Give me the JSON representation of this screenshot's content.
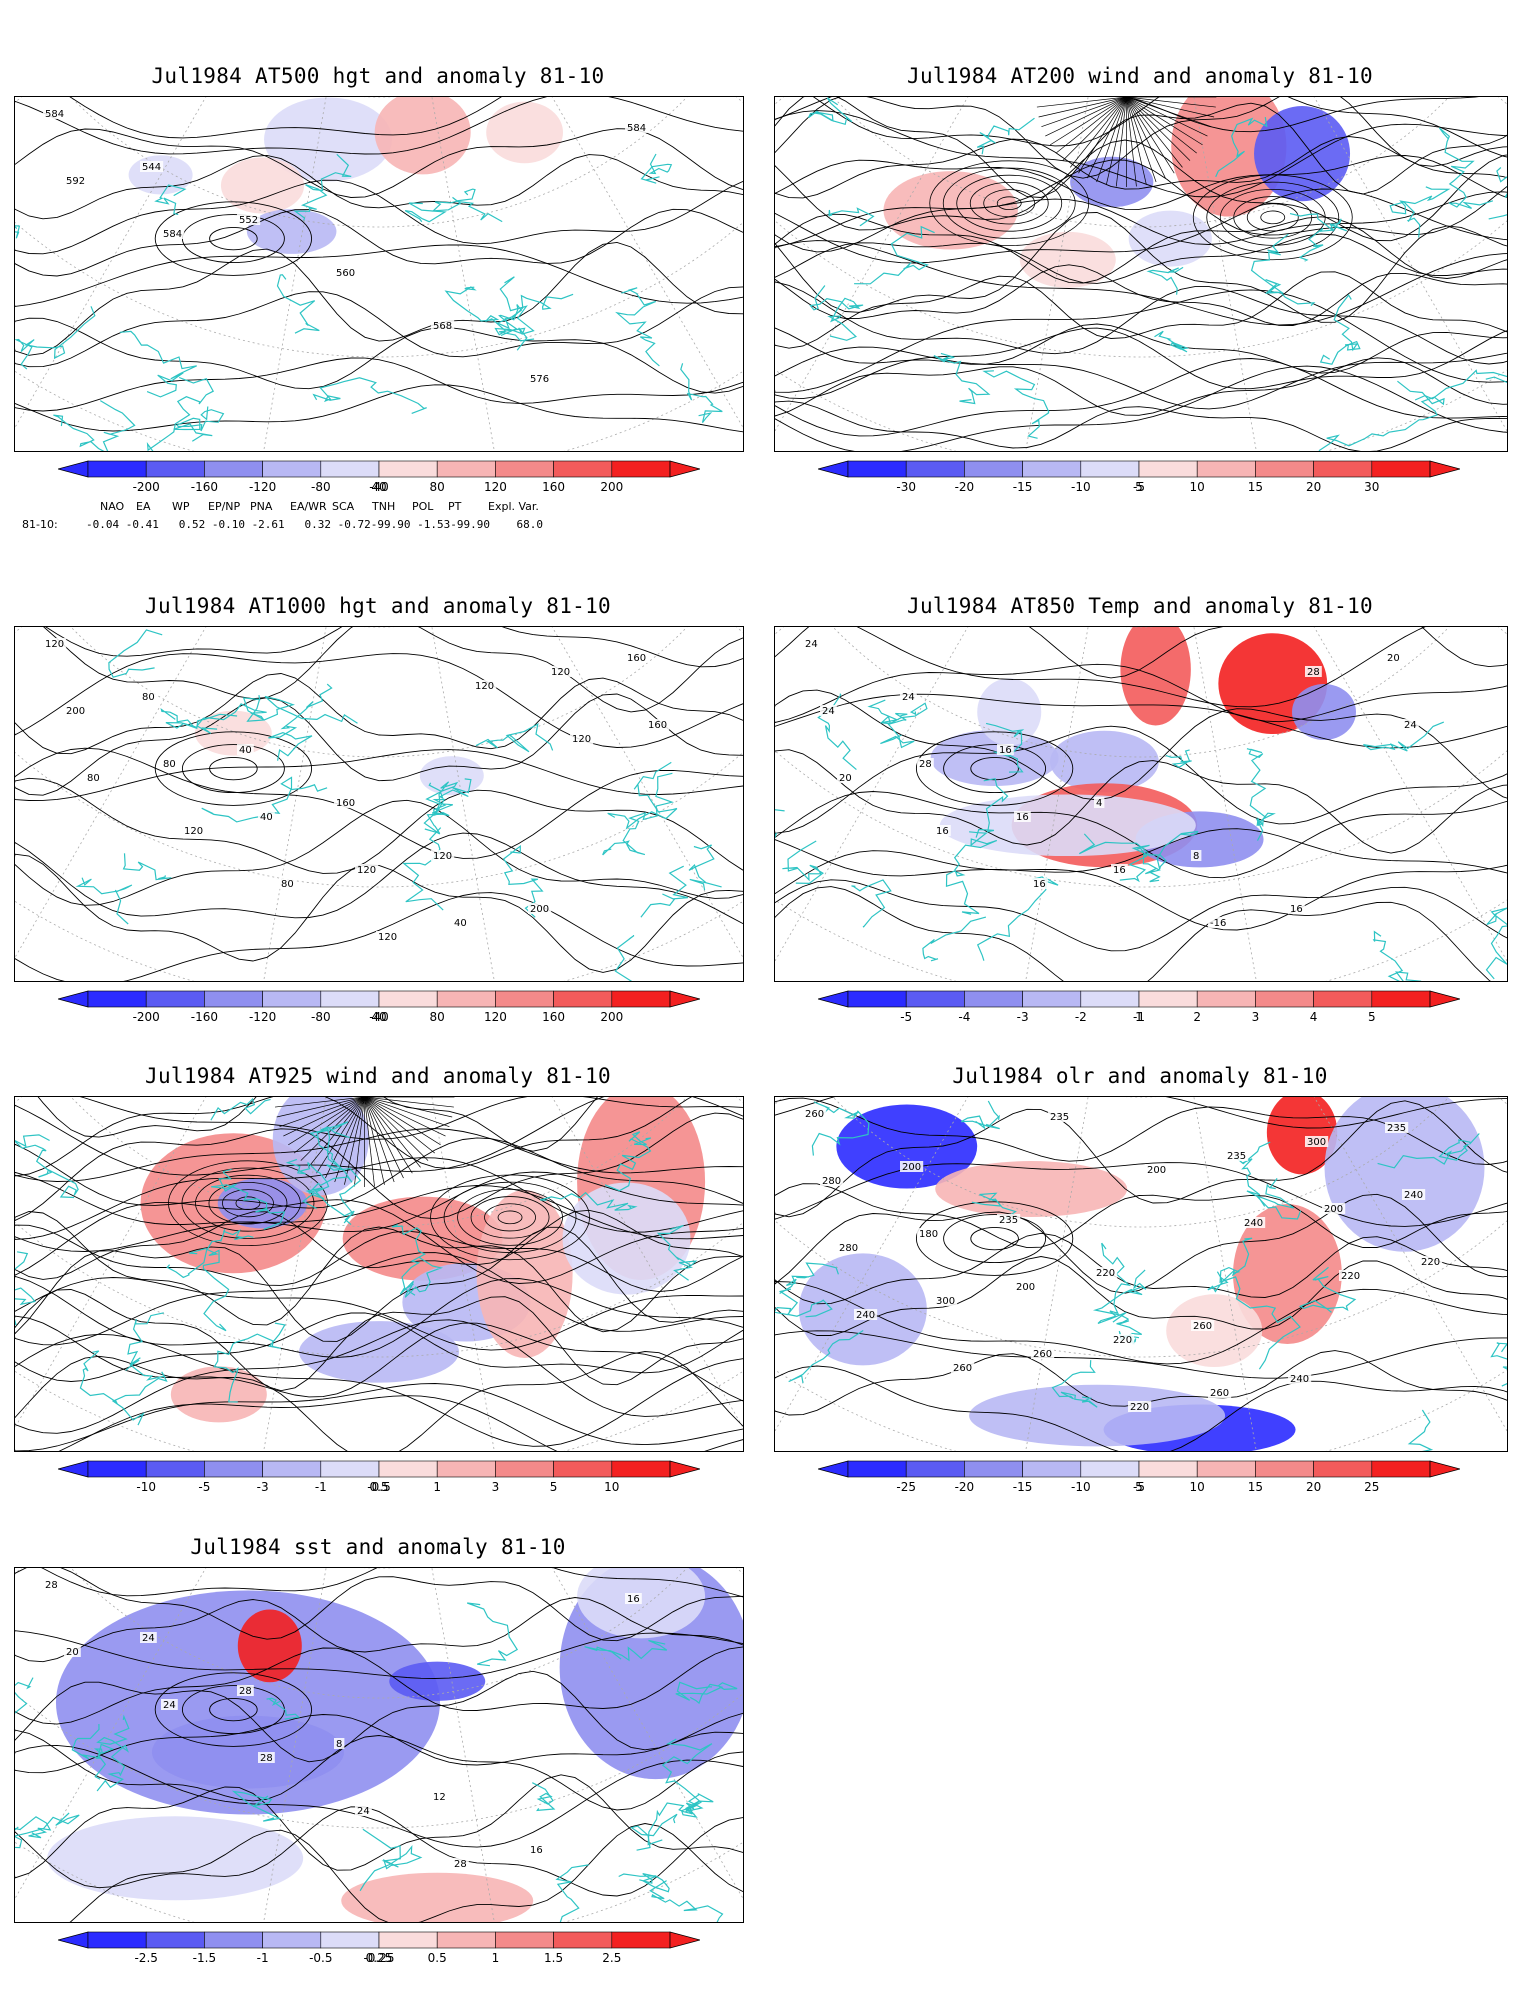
{
  "colors": {
    "coast": "#2ec4c4",
    "contour": "#000000",
    "grid": "#aaaaaa",
    "neg_ramp": [
      "#2b2bff",
      "#5b5bf3",
      "#8f8ff0",
      "#b8b8f4",
      "#dcdcf8"
    ],
    "pos_ramp": [
      "#fadcdc",
      "#f7b5b5",
      "#f48a8a",
      "#f35b5b",
      "#f32020"
    ]
  },
  "panels": [
    {
      "id": "at500",
      "title": "Jul1984 AT500 hgt and anomaly 81-10",
      "colorbar": [
        "-200",
        "-160",
        "-120",
        "-80",
        "-40",
        "40",
        "80",
        "120",
        "160",
        "200"
      ],
      "contour_labels": [
        "584",
        "544",
        "552",
        "560",
        "568",
        "576",
        "584",
        "592",
        "584"
      ]
    },
    {
      "id": "at200",
      "title": "Jul1984 AT200 wind and anomaly 81-10",
      "colorbar": [
        "-30",
        "-20",
        "-15",
        "-10",
        "-5",
        "5",
        "10",
        "15",
        "20",
        "30"
      ],
      "contour_labels": []
    },
    {
      "id": "at1000",
      "title": "Jul1984 AT1000 hgt and anomaly 81-10",
      "colorbar": [
        "-200",
        "-160",
        "-120",
        "-80",
        "-40",
        "40",
        "80",
        "120",
        "160",
        "200"
      ],
      "contour_labels": [
        "120",
        "80",
        "40",
        "160",
        "120",
        "200",
        "160",
        "200",
        "80",
        "40",
        "120",
        "40",
        "120",
        "160",
        "80",
        "120",
        "80",
        "120",
        "120",
        "120"
      ]
    },
    {
      "id": "at850",
      "title": "Jul1984 AT850 Temp and anomaly 81-10",
      "colorbar": [
        "-5",
        "-4",
        "-3",
        "-2",
        "-1",
        "1",
        "2",
        "3",
        "4",
        "5"
      ],
      "contour_labels": [
        "24",
        "24",
        "16",
        "4",
        "8",
        "16",
        "20",
        "24",
        "28",
        "16",
        "16",
        "-16",
        "28",
        "24",
        "20",
        "16",
        "16"
      ]
    },
    {
      "id": "at925",
      "title": "Jul1984 AT925 wind and anomaly 81-10",
      "colorbar": [
        "-10",
        "-5",
        "-3",
        "-1",
        "-0.5",
        "0.5",
        "1",
        "3",
        "5",
        "10"
      ],
      "contour_labels": []
    },
    {
      "id": "olr",
      "title": "Jul1984 olr and anomaly 81-10",
      "colorbar": [
        "-25",
        "-20",
        "-15",
        "-10",
        "-5",
        "5",
        "10",
        "15",
        "20",
        "25"
      ],
      "contour_labels": [
        "260",
        "200",
        "235",
        "220",
        "260",
        "240",
        "235",
        "280",
        "180",
        "200",
        "220",
        "260",
        "300",
        "240",
        "280",
        "300",
        "260",
        "220",
        "235",
        "200",
        "220",
        "240",
        "260",
        "235",
        "200",
        "240",
        "220"
      ]
    },
    {
      "id": "sst",
      "title": "Jul1984 sst and anomaly 81-10",
      "colorbar": [
        "-2.5",
        "-1.5",
        "-1",
        "-0.5",
        "-0.25",
        "0.25",
        "0.5",
        "1",
        "1.5",
        "2.5"
      ],
      "contour_labels": [
        "28",
        "24",
        "28",
        "8",
        "12",
        "16",
        "16",
        "20",
        "24",
        "28",
        "24",
        "28"
      ]
    }
  ],
  "indices": {
    "headers": [
      "NAO",
      "EA",
      "WP",
      "EP/NP",
      "PNA",
      "EA/WR",
      "SCA",
      "TNH",
      "POL",
      "PT",
      "Expl. Var."
    ],
    "row_label": "81-10:",
    "values": "-0.04 -0.41   0.52 -0.10 -2.61   0.32 -0.72-99.90 -1.53-99.90    68.0"
  }
}
